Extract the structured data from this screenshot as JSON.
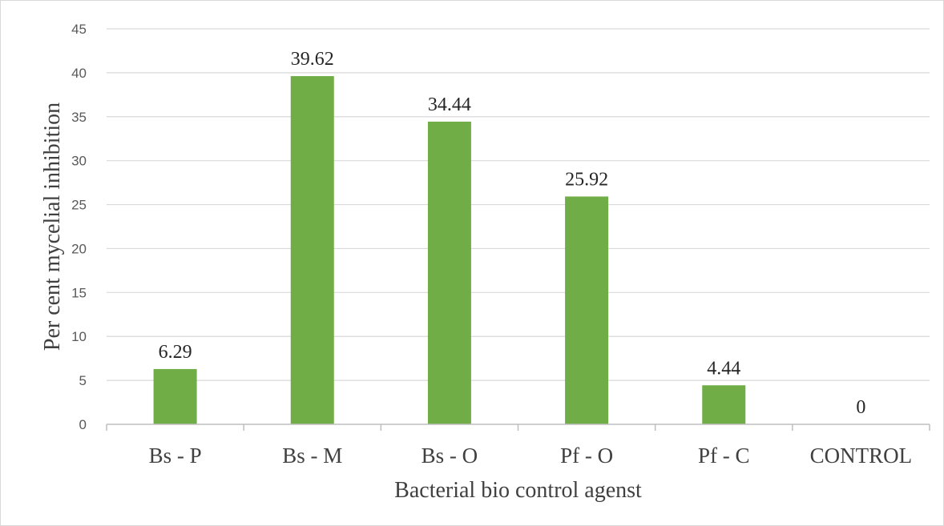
{
  "chart_data": {
    "type": "bar",
    "title": "",
    "xlabel": "Bacterial bio control agenst",
    "ylabel": "Per cent mycelial inhibition",
    "categories": [
      "Bs - P",
      "Bs - M",
      "Bs - O",
      "Pf - O",
      "Pf - C",
      "CONTROL"
    ],
    "values": [
      6.29,
      39.62,
      34.44,
      25.92,
      4.44,
      0
    ],
    "data_labels": [
      "6.29",
      "39.62",
      "34.44",
      "25.92",
      "4.44",
      "0"
    ],
    "ylim": [
      0,
      45
    ],
    "yticks": [
      0,
      5,
      10,
      15,
      20,
      25,
      30,
      35,
      40,
      45
    ],
    "grid": true,
    "legend": "none",
    "bar_color": "#70ad47"
  }
}
